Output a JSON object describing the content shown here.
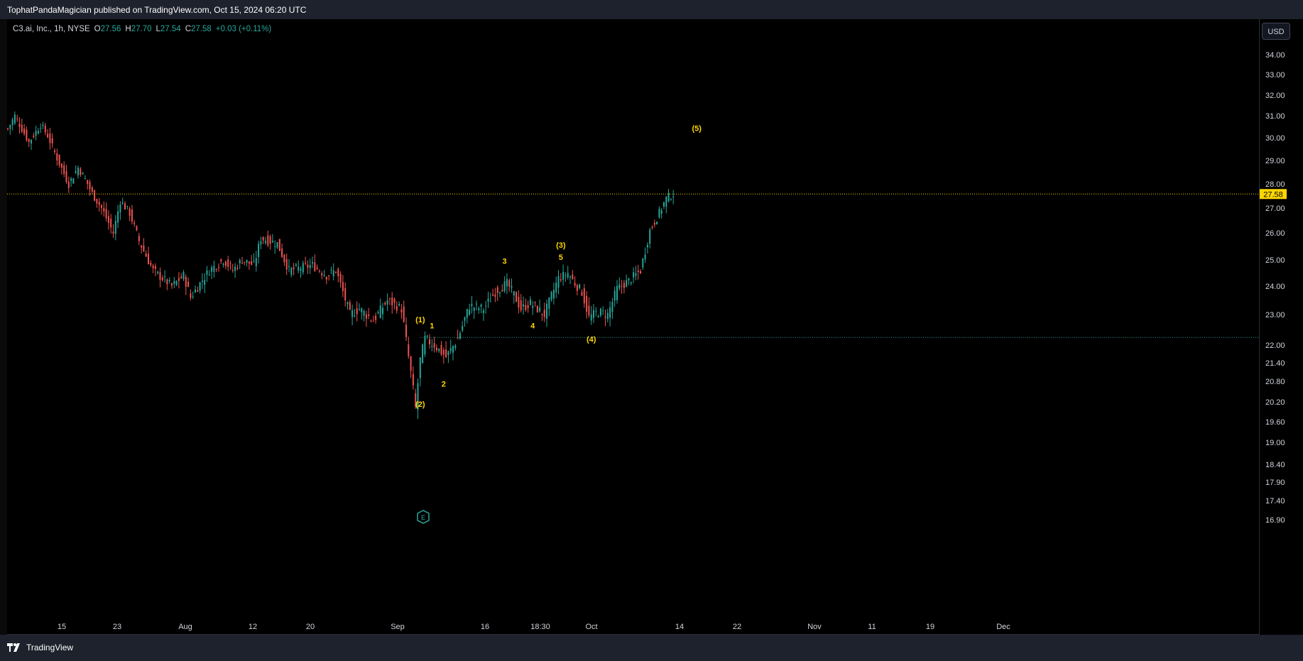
{
  "header": {
    "publisher_line": "TophatPandaMagician published on TradingView.com, Oct 15, 2024 06:20 UTC"
  },
  "legend": {
    "symbol": "C3.ai, Inc., 1h, NYSE",
    "open_label": "O",
    "open": "27.56",
    "high_label": "H",
    "high": "27.70",
    "low_label": "L",
    "low": "27.54",
    "close_label": "C",
    "close": "27.58",
    "change": "+0.03 (+0.11%)"
  },
  "currency_button": "USD",
  "footer": {
    "brand": "TradingView"
  },
  "colors": {
    "up": "#26a69a",
    "down": "#ef5350",
    "last_price": "#ffd600",
    "support": "#26a69a",
    "wave_labels": "#ffd600"
  },
  "chart_data": {
    "type": "candlestick",
    "last_price": 27.58,
    "support_level": 22.25,
    "price_ticks": [
      "34.00",
      "33.00",
      "32.00",
      "31.00",
      "30.00",
      "29.00",
      "28.00",
      "27.00",
      "26.00",
      "25.00",
      "24.00",
      "23.00",
      "22.00",
      "21.40",
      "20.80",
      "20.20",
      "19.60",
      "19.00",
      "18.40",
      "17.90",
      "17.40",
      "16.90"
    ],
    "time_ticks": [
      "15",
      "23",
      "Aug",
      "12",
      "20",
      "Sep",
      "16",
      "18:30",
      "Oct",
      "14",
      "22",
      "Nov",
      "11",
      "19",
      "Dec"
    ],
    "anchors": [
      [
        0,
        30.4
      ],
      [
        3,
        31.0
      ],
      [
        9,
        29.8
      ],
      [
        14,
        30.6
      ],
      [
        17,
        30.1
      ],
      [
        21,
        29.1
      ],
      [
        26,
        28.0
      ],
      [
        30,
        28.7
      ],
      [
        33,
        28.2
      ],
      [
        36,
        27.6
      ],
      [
        40,
        27.0
      ],
      [
        45,
        26.0
      ],
      [
        48,
        27.3
      ],
      [
        52,
        26.8
      ],
      [
        56,
        25.7
      ],
      [
        62,
        24.6
      ],
      [
        70,
        24.0
      ],
      [
        75,
        24.4
      ],
      [
        78,
        23.6
      ],
      [
        86,
        24.6
      ],
      [
        92,
        25.0
      ],
      [
        96,
        24.6
      ],
      [
        100,
        25.0
      ],
      [
        105,
        24.8
      ],
      [
        108,
        25.8
      ],
      [
        115,
        25.6
      ],
      [
        120,
        24.6
      ],
      [
        130,
        24.8
      ],
      [
        136,
        24.4
      ],
      [
        140,
        24.6
      ],
      [
        146,
        23.0
      ],
      [
        150,
        23.2
      ],
      [
        156,
        22.8
      ],
      [
        162,
        23.5
      ],
      [
        168,
        23.2
      ],
      [
        174,
        20.0
      ],
      [
        176,
        21.5
      ],
      [
        178,
        22.2
      ],
      [
        182,
        22.0
      ],
      [
        187,
        21.6
      ],
      [
        192,
        22.2
      ],
      [
        197,
        23.3
      ],
      [
        203,
        23.2
      ],
      [
        208,
        23.8
      ],
      [
        213,
        24.1
      ],
      [
        216,
        23.7
      ],
      [
        219,
        23.2
      ],
      [
        223,
        23.4
      ],
      [
        229,
        23.0
      ],
      [
        235,
        24.3
      ],
      [
        239,
        24.5
      ],
      [
        242,
        24.1
      ],
      [
        245,
        23.8
      ],
      [
        248,
        22.9
      ],
      [
        252,
        23.1
      ],
      [
        256,
        23.0
      ],
      [
        260,
        23.9
      ],
      [
        265,
        24.2
      ],
      [
        270,
        24.6
      ],
      [
        274,
        26.1
      ],
      [
        278,
        26.8
      ],
      [
        281,
        27.4
      ],
      [
        284,
        27.58
      ]
    ],
    "wave_labels": [
      {
        "text": "(1)",
        "bar": 176,
        "price": 22.75
      },
      {
        "text": "1",
        "bar": 181,
        "price": 22.55
      },
      {
        "text": "(2)",
        "bar": 176,
        "price": 20.05
      },
      {
        "text": "2",
        "bar": 186,
        "price": 20.65
      },
      {
        "text": "3",
        "bar": 212,
        "price": 24.85
      },
      {
        "text": "4",
        "bar": 224,
        "price": 22.55
      },
      {
        "text": "(3)",
        "bar": 236,
        "price": 25.45
      },
      {
        "text": "5",
        "bar": 236,
        "price": 25.0
      },
      {
        "text": "(4)",
        "bar": 249,
        "price": 22.1
      },
      {
        "text": "(5)",
        "bar": 294,
        "price": 30.3
      }
    ]
  }
}
